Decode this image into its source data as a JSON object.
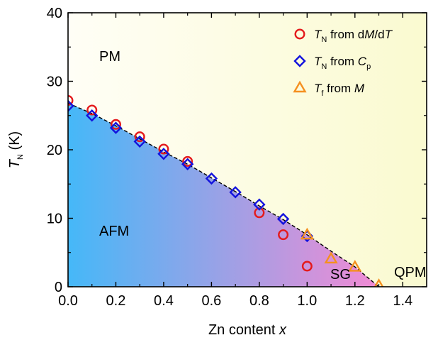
{
  "chart_data": {
    "type": "scatter",
    "xlabel": {
      "prefix": "Zn content ",
      "italic": "x"
    },
    "ylabel": {
      "main": "T",
      "sub": "N",
      "unit": " (K)"
    },
    "xlim": [
      0,
      1.5
    ],
    "ylim": [
      0,
      40
    ],
    "x_ticks": [
      "0.0",
      "0.2",
      "0.4",
      "0.6",
      "0.8",
      "1.0",
      "1.2",
      "1.4"
    ],
    "y_ticks": [
      "0",
      "10",
      "20",
      "30",
      "40"
    ],
    "regions": [
      {
        "label": "PM"
      },
      {
        "label": "AFM"
      },
      {
        "label": "SG"
      },
      {
        "label": "QPM"
      }
    ],
    "colors": {
      "afm_start": "#45b8f8",
      "afm_end": "#f28ad4",
      "pm_start": "#fffef6",
      "pm_end": "#fafad0",
      "circle": "#e41a1c",
      "diamond": "#1212dd",
      "triangle": "#f5901f"
    },
    "series": [
      {
        "marker": "circle",
        "legend": {
          "t": "T",
          "sub": "N",
          "rest": " from d",
          "i1": "M",
          "mid": "/d",
          "i2": "T"
        },
        "x": [
          0.0,
          0.1,
          0.2,
          0.3,
          0.4,
          0.5,
          0.8,
          0.9,
          1.0
        ],
        "y": [
          27.2,
          25.8,
          23.7,
          21.9,
          20.1,
          18.3,
          10.8,
          7.6,
          3.0
        ]
      },
      {
        "marker": "diamond",
        "legend": {
          "t": "T",
          "sub": "N",
          "rest": " from ",
          "i1": "C",
          "sub2": "p"
        },
        "x": [
          0.0,
          0.1,
          0.2,
          0.3,
          0.4,
          0.5,
          0.6,
          0.7,
          0.8,
          0.9,
          1.0
        ],
        "y": [
          26.4,
          25.0,
          23.2,
          21.2,
          19.4,
          17.9,
          15.8,
          13.8,
          12.0,
          9.9,
          7.4
        ]
      },
      {
        "marker": "triangle",
        "legend": {
          "t": "T",
          "sub": "f",
          "rest": " from ",
          "i1": "M"
        },
        "x": [
          1.0,
          1.1,
          1.2,
          1.3
        ],
        "y": [
          7.5,
          4.0,
          2.8,
          0.1
        ]
      }
    ],
    "boundary": {
      "x": [
        0.0,
        0.1,
        0.2,
        0.3,
        0.4,
        0.5,
        0.6,
        0.7,
        0.8,
        0.9,
        1.0,
        1.1,
        1.2,
        1.3
      ],
      "y": [
        26.8,
        25.3,
        23.5,
        21.6,
        19.7,
        17.9,
        15.9,
        13.9,
        11.8,
        9.8,
        7.6,
        5.2,
        2.9,
        0.0
      ]
    }
  }
}
